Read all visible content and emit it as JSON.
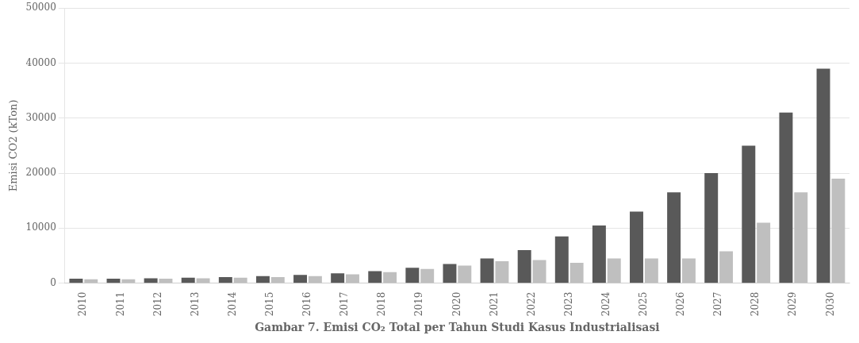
{
  "chart_data": {
    "type": "bar",
    "xlabel": "Gambar 7. Emisi CO₂ Total per Tahun Studi Kasus Industrialisasi",
    "ylabel": "Emisi CO2 (kTon)",
    "categories": [
      "2010",
      "2011",
      "2012",
      "2013",
      "2014",
      "2015",
      "2016",
      "2017",
      "2018",
      "2019",
      "2020",
      "2021",
      "2022",
      "2023",
      "2024",
      "2025",
      "2026",
      "2027",
      "2028",
      "2029",
      "2030"
    ],
    "series": [
      {
        "color": "#595959",
        "values": [
          800,
          800,
          900,
          1000,
          1100,
          1300,
          1500,
          1800,
          2200,
          2800,
          3500,
          4500,
          6000,
          8500,
          10500,
          13000,
          16500,
          20000,
          25000,
          31000,
          39000
        ]
      },
      {
        "color": "#bfbfbf",
        "values": [
          700,
          700,
          800,
          900,
          1000,
          1100,
          1300,
          1600,
          2000,
          2600,
          3200,
          4000,
          4200,
          3700,
          4500,
          4500,
          4500,
          5800,
          11000,
          16500,
          19000
        ]
      }
    ],
    "ylim": [
      0,
      50000
    ],
    "yticks": [
      0,
      10000,
      20000,
      30000,
      40000,
      50000
    ],
    "grid": true
  }
}
